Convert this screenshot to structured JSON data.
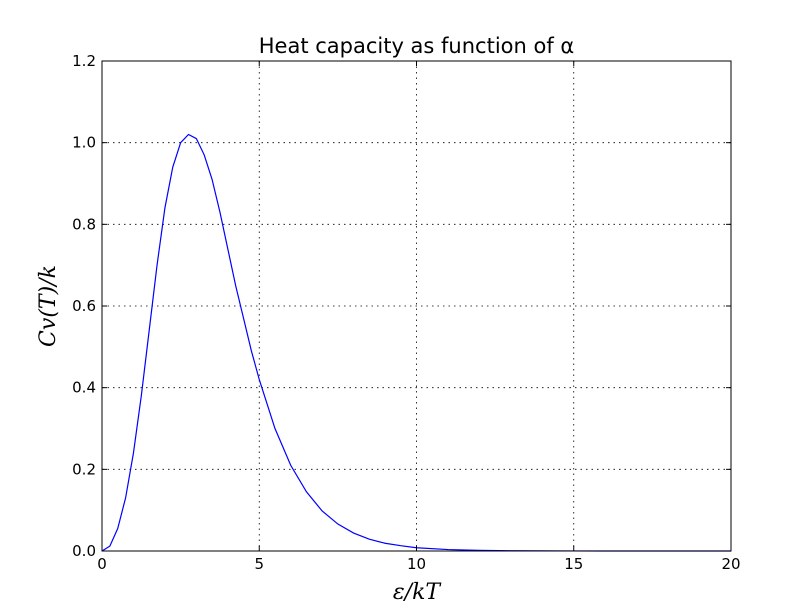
{
  "chart_data": {
    "type": "line",
    "title": "Heat capacity as function of α",
    "xlabel": "ε/kT",
    "ylabel": "Cv(T)/k",
    "xlim": [
      0,
      20
    ],
    "ylim": [
      0,
      1.2
    ],
    "xticks": [
      0,
      5,
      10,
      15,
      20
    ],
    "xtick_labels": [
      "0",
      "5",
      "10",
      "15",
      "20"
    ],
    "yticks": [
      0.0,
      0.2,
      0.4,
      0.6,
      0.8,
      1.0,
      1.2
    ],
    "ytick_labels": [
      "0.0",
      "0.2",
      "0.4",
      "0.6",
      "0.8",
      "1.0",
      "1.2"
    ],
    "grid": true,
    "series": [
      {
        "color": "#0000ff",
        "x": [
          0,
          0.25,
          0.5,
          0.75,
          1.0,
          1.25,
          1.5,
          1.75,
          2.0,
          2.25,
          2.5,
          2.75,
          3.0,
          3.25,
          3.5,
          3.75,
          4.0,
          4.25,
          4.5,
          4.75,
          5.0,
          5.5,
          6.0,
          6.5,
          7.0,
          7.5,
          8.0,
          8.5,
          9.0,
          9.5,
          10.0,
          11.0,
          12.0,
          13.0,
          14.0,
          15.0,
          16.0,
          17.0,
          18.0,
          19.0,
          20.0
        ],
        "y": [
          0,
          0.012,
          0.055,
          0.13,
          0.24,
          0.38,
          0.54,
          0.7,
          0.84,
          0.94,
          1.0,
          1.02,
          1.01,
          0.97,
          0.91,
          0.83,
          0.74,
          0.65,
          0.57,
          0.49,
          0.42,
          0.3,
          0.21,
          0.145,
          0.098,
          0.066,
          0.044,
          0.029,
          0.019,
          0.013,
          0.008,
          0.0035,
          0.0015,
          0.0006,
          0.0003,
          0.0001,
          5e-05,
          2e-05,
          1e-05,
          0,
          0
        ]
      }
    ]
  }
}
